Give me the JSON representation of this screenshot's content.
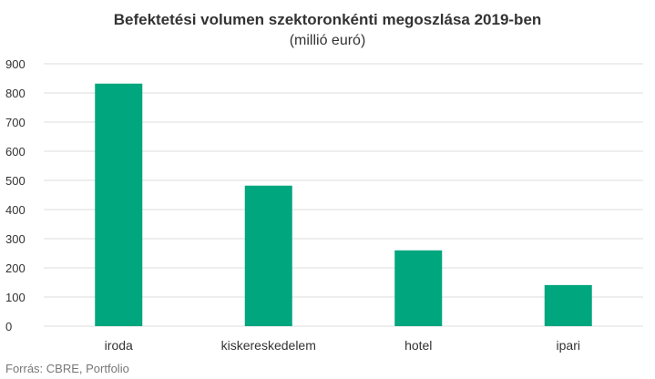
{
  "chart_data": {
    "type": "bar",
    "title": "Befektetési volumen szektoronkénti megoszlása 2019-ben",
    "subtitle": "(millió euró)",
    "categories": [
      "iroda",
      "kiskereskedelem",
      "hotel",
      "ipari"
    ],
    "values": [
      832,
      482,
      260,
      141
    ],
    "ylim": [
      0,
      900
    ],
    "yticks": [
      0,
      100,
      200,
      300,
      400,
      500,
      600,
      700,
      800,
      900
    ],
    "xlabel": "",
    "ylabel": "",
    "grid": true,
    "legend": "none",
    "bar_color": "#00a67e",
    "grid_color": "#dddddd"
  },
  "source": "Forrás: CBRE, Portfolio"
}
